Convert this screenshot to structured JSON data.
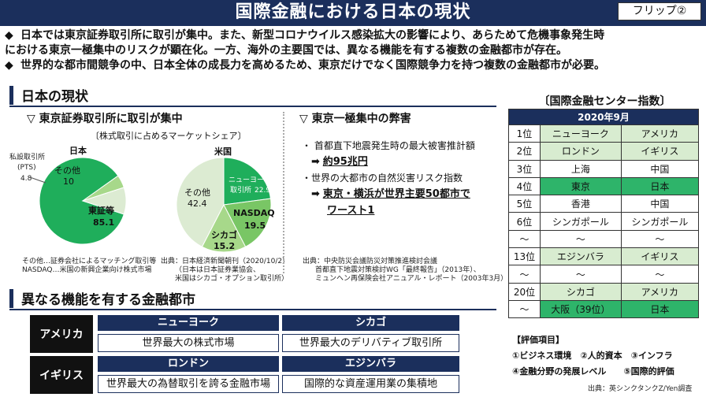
{
  "header": {
    "title": "国際金融における日本の現状",
    "flip_label": "フリップ②"
  },
  "bullets": [
    {
      "marker": "◆",
      "lines": [
        "日本では東京証券取引所に取引が集中。また、新型コロナウイルス感染拡大の影響により、あらためて危機事象発生時",
        "における東京一極集中のリスクが顕在化。一方、海外の主要国では、異なる機能を有する複数の金融都市が存在。"
      ]
    },
    {
      "marker": "◆",
      "lines": [
        "世界的な都市間競争の中、日本全体の成長力を高めるため、東京だけでなく国際競争力を持つ複数の金融都市が必要。"
      ]
    }
  ],
  "section_japan": {
    "title": "日本の現状",
    "tse": {
      "heading": "▽ 東京証券取引所に取引が集中",
      "subtitle": "〔株式取引に占めるマーケットシェア〕",
      "japan_label": "日本",
      "us_label": "米国",
      "pts_label_1": "私設取引所",
      "pts_label_2": "(PTS)",
      "pts_value": "4.8",
      "notes": [
        "その他…証券会社によるマッチング取引等",
        "NASDAQ…米国の新興企業向け株式市場"
      ],
      "source": [
        "出典：日本経済新聞朝刊（2020/10/2）",
        "（日本は日本証券業協会、",
        "米国はシカゴ・オプション取引所）"
      ]
    },
    "risk": {
      "heading": "▽ 東京一極集中の弊害",
      "item1": "・ 首都直下地震発生時の最大被害推計額",
      "item1_value": "約95兆円",
      "item2": "・世界の大都市の自然災害リスク指数",
      "item2_value_1": "東京・横浜が世界主要50都市で",
      "item2_value_2": "ワースト1",
      "arrow": "➡",
      "source": [
        "出典：中央防災会議防災対策推進検討会議",
        "首都直下地震対策検討WG「最終報告」（2013年）、",
        "ミュンヘン再保険会社アニュアル・レポート（2003年3月）"
      ]
    }
  },
  "chart_data": [
    {
      "type": "pie",
      "title": "日本",
      "labels": [
        "東証等",
        "私設取引所(PTS)",
        "その他"
      ],
      "values": [
        85.1,
        4.8,
        10
      ],
      "colors": [
        "#1fae5b",
        "#a7d88a",
        "#dcebd2"
      ]
    },
    {
      "type": "pie",
      "title": "米国",
      "labels": [
        "ニューヨーク証券取引所",
        "NASDAQ",
        "シカゴ",
        "その他"
      ],
      "values": [
        22.9,
        19.5,
        15.2,
        42.4
      ],
      "colors": [
        "#1fae5b",
        "#79c665",
        "#a7d88a",
        "#dcebd2"
      ]
    }
  ],
  "pie_labels": {
    "jp_main_name": "東証等",
    "jp_main_value": "85.1",
    "jp_other_name": "その他",
    "jp_other_value": "10",
    "us_nyse_name": "ニューヨーク証券",
    "us_nyse_name2": "取引所",
    "us_nyse_value": "22.9",
    "us_nasdaq_name": "NASDAQ",
    "us_nasdaq_value": "19.5",
    "us_chicago_name": "シカゴ",
    "us_chicago_value": "15.2",
    "us_other_name": "その他",
    "us_other_value": "42.4"
  },
  "section_functions": {
    "title": "異なる機能を有する金融都市",
    "rows": [
      {
        "country": "アメリカ",
        "cities": [
          {
            "name": "ニューヨーク",
            "desc": "世界最大の株式市場"
          },
          {
            "name": "シカゴ",
            "desc": "世界最大のデリバティブ取引所"
          }
        ]
      },
      {
        "country": "イギリス",
        "cities": [
          {
            "name": "ロンドン",
            "desc": "世界最大の為替取引を誇る金融市場"
          },
          {
            "name": "エジンバラ",
            "desc": "国際的な資産運用業の集積地"
          }
        ]
      }
    ]
  },
  "index": {
    "title": "〔国際金融センター指数〕",
    "date": "2020年9月",
    "rows": [
      {
        "rank": "1位",
        "a": "ニューヨーク",
        "b": "アメリカ"
      },
      {
        "rank": "2位",
        "a": "ロンドン",
        "b": "イギリス"
      },
      {
        "rank": "3位",
        "a": "上海",
        "b": "中国"
      },
      {
        "rank": "4位",
        "a": "東京",
        "b": "日本"
      },
      {
        "rank": "5位",
        "a": "香港",
        "b": "中国"
      },
      {
        "rank": "6位",
        "a": "シンガポール",
        "b": "シンガポール"
      },
      {
        "rank": "～",
        "a": "～",
        "b": "～"
      },
      {
        "rank": "13位",
        "a": "エジンバラ",
        "b": "イギリス"
      },
      {
        "rank": "～",
        "a": "～",
        "b": "～"
      },
      {
        "rank": "20位",
        "a": "シカゴ",
        "b": "アメリカ"
      },
      {
        "rank": "～",
        "a": "大阪（39位）",
        "b": "日本"
      }
    ],
    "eval_title": "【評価項目】",
    "eval_line1": "①ビジネス環境　②人的資本　③インフラ",
    "eval_line2": "④金融分野の発展レベル　　⑤国際的評価",
    "source": "出典：英シンクタンクZ/Yen調査"
  }
}
